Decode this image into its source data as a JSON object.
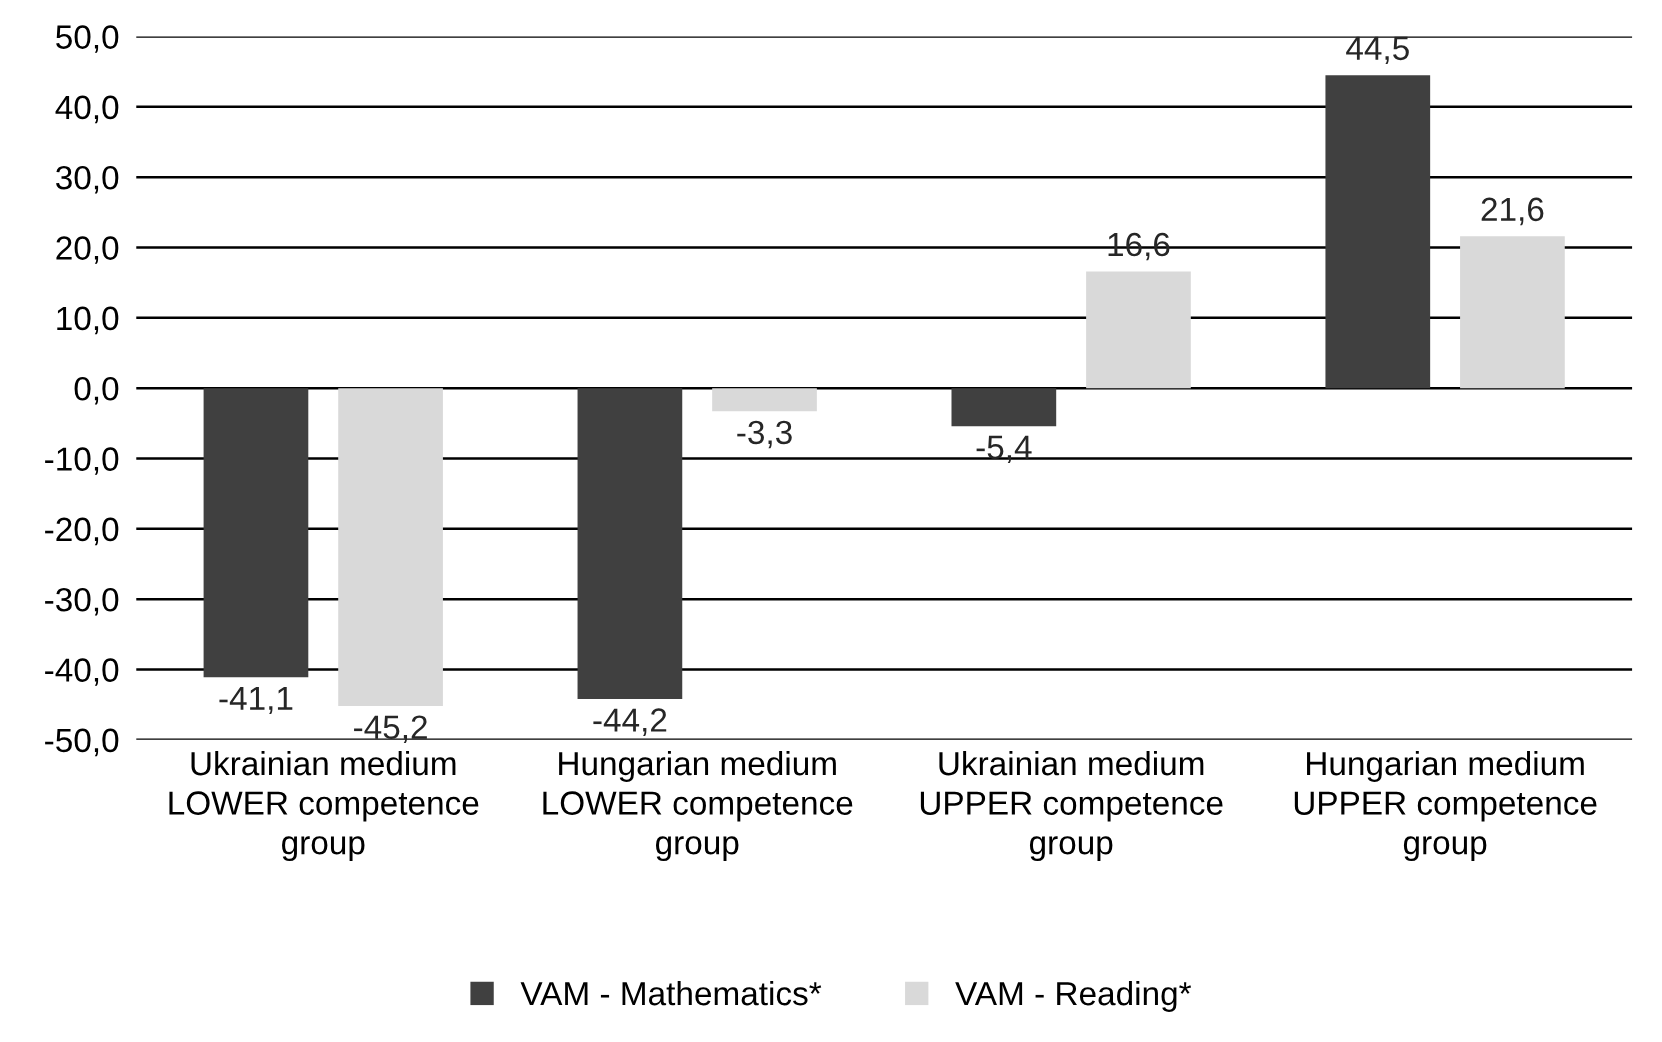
{
  "chart_data": {
    "type": "bar",
    "categories": [
      "Ukrainian medium\nLOWER competence\ngroup",
      "Hungarian medium\nLOWER competence\ngroup",
      "Ukrainian medium\nUPPER competence\ngroup",
      "Hungarian medium\nUPPER competence\ngroup"
    ],
    "series": [
      {
        "name": "VAM - Mathematics*",
        "color": "#404040",
        "values": [
          -41.1,
          -44.2,
          -5.4,
          44.5
        ],
        "value_labels": [
          "-41,1",
          "-44,2",
          "-5,4",
          "44,5"
        ]
      },
      {
        "name": "VAM - Reading*",
        "color": "#d9d9d9",
        "values": [
          -45.2,
          -3.3,
          16.6,
          21.6
        ],
        "value_labels": [
          "-45,2",
          "-3,3",
          "16,6",
          "21,6"
        ]
      }
    ],
    "ylim": [
      -50,
      50
    ],
    "yticks": [
      {
        "value": -50,
        "label": "-50,0"
      },
      {
        "value": -40,
        "label": "-40,0"
      },
      {
        "value": -30,
        "label": "-30,0"
      },
      {
        "value": -20,
        "label": "-20,0"
      },
      {
        "value": -10,
        "label": "-10,0"
      },
      {
        "value": 0,
        "label": "0,0"
      },
      {
        "value": 10,
        "label": "10,0"
      },
      {
        "value": 20,
        "label": "20,0"
      },
      {
        "value": 30,
        "label": "30,0"
      },
      {
        "value": 40,
        "label": "40,0"
      },
      {
        "value": 50,
        "label": "50,0"
      }
    ],
    "grid": "y",
    "legend": "bottom"
  }
}
